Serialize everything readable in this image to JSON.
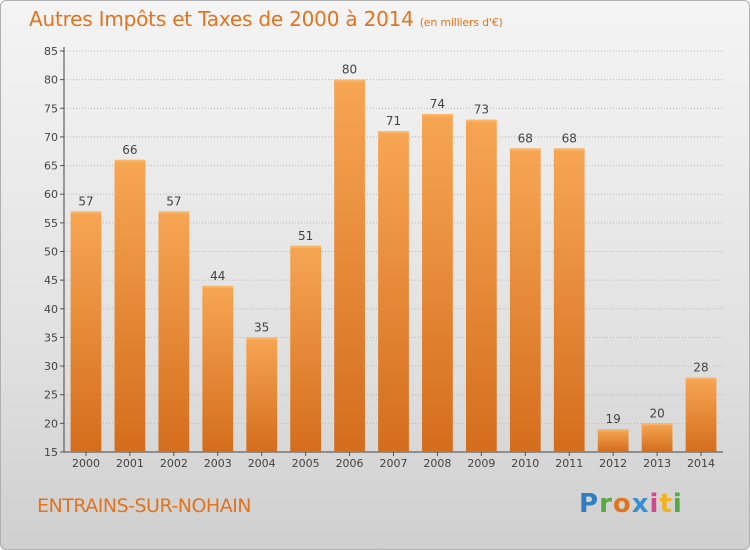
{
  "chart_data": {
    "type": "bar",
    "title": "Autres Impôts et Taxes de 2000 à 2014",
    "unit_note": "(en milliers d'€)",
    "categories": [
      "2000",
      "2001",
      "2002",
      "2003",
      "2004",
      "2005",
      "2006",
      "2007",
      "2008",
      "2009",
      "2010",
      "2011",
      "2012",
      "2013",
      "2014"
    ],
    "values": [
      57,
      66,
      57,
      44,
      35,
      51,
      80,
      71,
      74,
      73,
      68,
      68,
      19,
      20,
      28
    ],
    "ylim": [
      15,
      85
    ],
    "yticks": [
      15,
      20,
      25,
      30,
      35,
      40,
      45,
      50,
      55,
      60,
      65,
      70,
      75,
      80,
      85
    ],
    "grid": "horizontal dotted",
    "bar_color": "#f39a45",
    "bar_color_dark": "#d9731e",
    "title_color": "#e0741f"
  },
  "footer": {
    "city": "ENTRAINS-SUR-NOHAIN",
    "logo": "Proxiti"
  }
}
